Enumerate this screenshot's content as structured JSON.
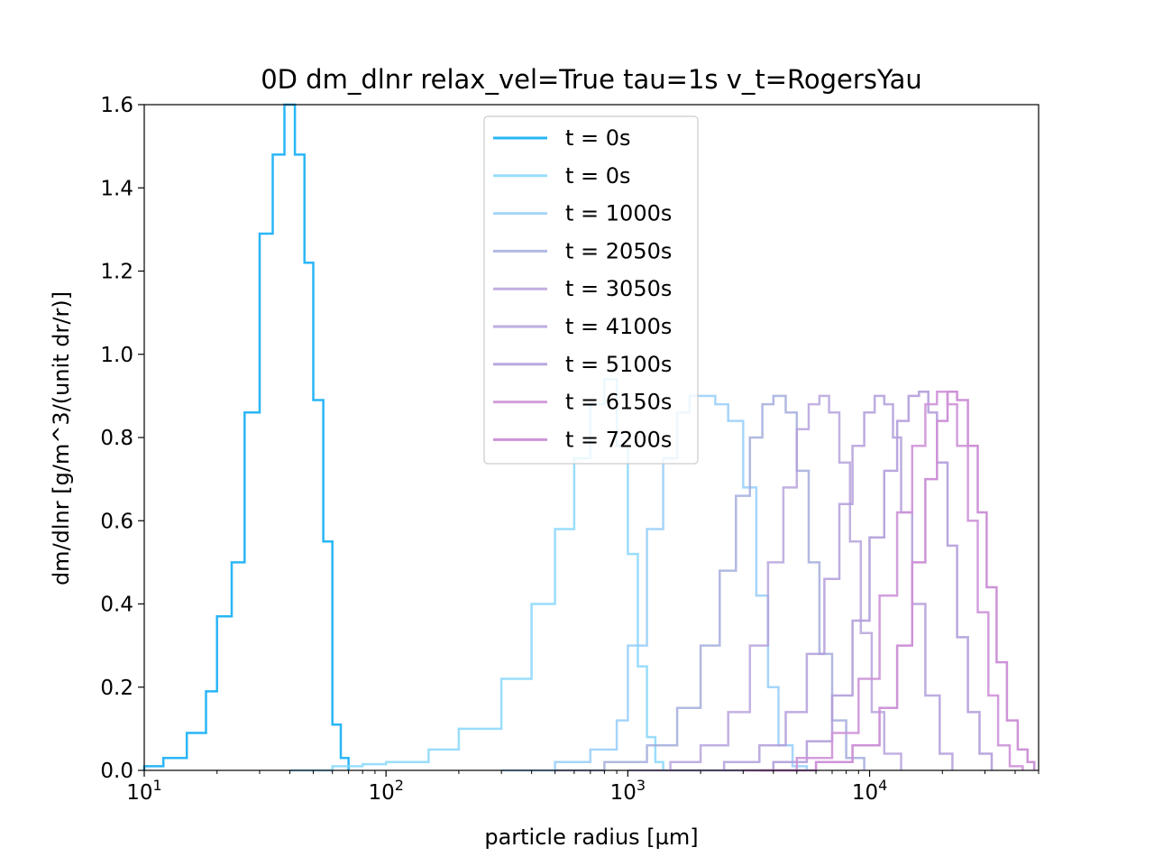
{
  "chart_data": {
    "type": "line",
    "title": "0D dm_dlnr relax_vel=True tau=1s v_t=RogersYau",
    "xlabel": "particle radius [µm]",
    "ylabel": "dm/dlnr [g/m^3/(unit dr/r)]",
    "xscale": "log",
    "xlim": [
      10,
      50000
    ],
    "ylim": [
      0,
      1.6
    ],
    "xticks": [
      {
        "value": 10,
        "base": "10",
        "exp": "1"
      },
      {
        "value": 100,
        "base": "10",
        "exp": "2"
      },
      {
        "value": 1000,
        "base": "10",
        "exp": "3"
      },
      {
        "value": 10000,
        "base": "10",
        "exp": "4"
      }
    ],
    "yticks": [
      "0.0",
      "0.2",
      "0.4",
      "0.6",
      "0.8",
      "1.0",
      "1.2",
      "1.4",
      "1.6"
    ],
    "legend": "upper center",
    "series": [
      {
        "name": "t = 0s",
        "color": "#29b6f6",
        "alpha": 1.0,
        "x": [
          10,
          12,
          15,
          18,
          20,
          23,
          26,
          30,
          34,
          38,
          42,
          46,
          50,
          55,
          60,
          65,
          70
        ],
        "y": [
          0.01,
          0.03,
          0.09,
          0.19,
          0.37,
          0.5,
          0.86,
          1.29,
          1.48,
          1.6,
          1.48,
          1.22,
          0.89,
          0.55,
          0.11,
          0.03,
          0.0
        ]
      },
      {
        "name": "t = 0s",
        "color": "#81d4fa",
        "alpha": 0.8,
        "x": [
          40,
          60,
          80,
          100,
          150,
          200,
          300,
          400,
          500,
          600,
          700,
          800,
          900,
          1000,
          1100,
          1200,
          1300,
          1400
        ],
        "y": [
          0.0,
          0.01,
          0.015,
          0.02,
          0.05,
          0.1,
          0.22,
          0.4,
          0.58,
          0.75,
          0.88,
          0.94,
          0.78,
          0.52,
          0.25,
          0.08,
          0.02,
          0.0
        ]
      },
      {
        "name": "t = 1000s",
        "color": "#90caf9",
        "alpha": 0.8,
        "x": [
          300,
          500,
          700,
          900,
          1000,
          1200,
          1400,
          1600,
          1800,
          2000,
          2300,
          2600,
          3000,
          3400,
          3800,
          4200,
          4800,
          5500
        ],
        "y": [
          0.0,
          0.02,
          0.05,
          0.12,
          0.3,
          0.58,
          0.75,
          0.86,
          0.9,
          0.9,
          0.88,
          0.84,
          0.68,
          0.42,
          0.2,
          0.06,
          0.01,
          0.0
        ]
      },
      {
        "name": "t = 2050s",
        "color": "#9fa8da",
        "alpha": 0.8,
        "x": [
          500,
          800,
          1200,
          1600,
          2000,
          2400,
          2800,
          3200,
          3600,
          4000,
          4500,
          5000,
          5600,
          6200,
          7000,
          8000,
          9500
        ],
        "y": [
          0.0,
          0.02,
          0.06,
          0.15,
          0.3,
          0.48,
          0.66,
          0.8,
          0.88,
          0.9,
          0.86,
          0.72,
          0.5,
          0.28,
          0.12,
          0.03,
          0.0
        ]
      },
      {
        "name": "t = 3050s",
        "color": "#b39ddb",
        "alpha": 0.8,
        "x": [
          1000,
          1500,
          2000,
          2600,
          3200,
          3800,
          4400,
          5000,
          5600,
          6200,
          6800,
          7500,
          8300,
          9200,
          10200,
          11500,
          13500
        ],
        "y": [
          0.0,
          0.02,
          0.06,
          0.14,
          0.3,
          0.5,
          0.68,
          0.82,
          0.88,
          0.9,
          0.86,
          0.74,
          0.55,
          0.33,
          0.14,
          0.04,
          0.0
        ]
      },
      {
        "name": "t = 4100s",
        "color": "#b39ddb",
        "alpha": 0.85,
        "x": [
          1500,
          2500,
          3500,
          4500,
          5500,
          6500,
          7500,
          8500,
          9500,
          10500,
          11500,
          12500,
          13500,
          15000,
          17000,
          19500,
          22000
        ],
        "y": [
          0.0,
          0.02,
          0.06,
          0.14,
          0.28,
          0.46,
          0.64,
          0.78,
          0.86,
          0.9,
          0.88,
          0.8,
          0.62,
          0.4,
          0.18,
          0.04,
          0.0
        ]
      },
      {
        "name": "t = 5100s",
        "color": "#b39ddb",
        "alpha": 0.9,
        "x": [
          2500,
          4000,
          5500,
          7000,
          8500,
          10000,
          11500,
          13000,
          14500,
          16000,
          17500,
          19000,
          21000,
          23000,
          25500,
          28500,
          32000
        ],
        "y": [
          0.0,
          0.02,
          0.07,
          0.18,
          0.36,
          0.56,
          0.72,
          0.84,
          0.9,
          0.91,
          0.86,
          0.74,
          0.54,
          0.32,
          0.14,
          0.04,
          0.0
        ]
      },
      {
        "name": "t = 6150s",
        "color": "#ce93d8",
        "alpha": 0.9,
        "x": [
          3000,
          5000,
          7000,
          9000,
          11000,
          13000,
          15000,
          17000,
          19000,
          21000,
          23000,
          25500,
          28000,
          31000,
          34000,
          38000,
          43000
        ],
        "y": [
          0.0,
          0.03,
          0.09,
          0.22,
          0.42,
          0.62,
          0.78,
          0.88,
          0.91,
          0.88,
          0.78,
          0.6,
          0.38,
          0.18,
          0.06,
          0.01,
          0.0
        ]
      },
      {
        "name": "t = 7200s",
        "color": "#ce93d8",
        "alpha": 1.0,
        "x": [
          3500,
          6000,
          8500,
          11000,
          13000,
          15000,
          17000,
          19000,
          21000,
          23000,
          25500,
          28000,
          30500,
          33500,
          37000,
          41000,
          45000,
          48000
        ],
        "y": [
          0.0,
          0.02,
          0.06,
          0.15,
          0.3,
          0.5,
          0.7,
          0.84,
          0.91,
          0.89,
          0.78,
          0.62,
          0.44,
          0.26,
          0.12,
          0.05,
          0.02,
          0.0
        ]
      }
    ]
  }
}
